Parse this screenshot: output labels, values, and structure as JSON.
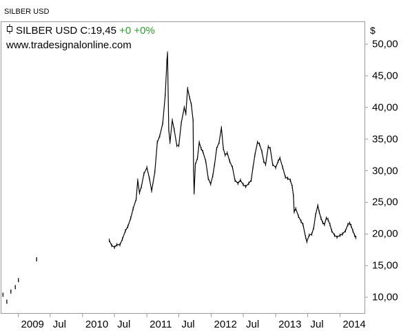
{
  "window": {
    "title": "SILBER USD"
  },
  "legend": {
    "symbol_icon": "candle-icon",
    "name": "SILBER USD",
    "close_label": "C:19,45",
    "change_abs": "+0",
    "change_pct": "+0%",
    "change_color": "#2a9d2a"
  },
  "watermark": "www.tradesignalonline.com",
  "currency": "$",
  "chart_data": {
    "type": "line",
    "title": "SILBER USD",
    "ylim": [
      7.5,
      53.5
    ],
    "y_ticks": [
      "10,00",
      "15,00",
      "20,00",
      "25,00",
      "30,00",
      "35,00",
      "40,00",
      "45,00",
      "50,00"
    ],
    "y_tick_values": [
      10,
      15,
      20,
      25,
      30,
      35,
      40,
      45,
      50
    ],
    "x_tick_labels": [
      "2009",
      "Jul",
      "2010",
      "Jul",
      "2011",
      "Jul",
      "2012",
      "Jul",
      "2013",
      "Jul",
      "2014"
    ],
    "x_tick_dates": [
      "2009-01-01",
      "2009-07-01",
      "2010-01-01",
      "2010-07-01",
      "2011-01-01",
      "2011-07-01",
      "2012-01-01",
      "2012-07-01",
      "2013-01-01",
      "2013-07-01",
      "2014-01-01"
    ],
    "xlim": [
      "2008-10-01",
      "2014-04-15"
    ],
    "grid": false,
    "line_color": "#000000",
    "series": [
      {
        "sparse_points": [
          [
            "2008-10-06",
            10.4
          ],
          [
            "2008-10-28",
            9.3
          ],
          [
            "2008-11-20",
            10.9
          ],
          [
            "2008-12-15",
            11.6
          ],
          [
            "2009-01-02",
            12.7
          ],
          [
            "2009-04-15",
            16.0
          ]
        ],
        "points": [
          [
            "2010-06-01",
            19.0
          ],
          [
            "2010-06-15",
            18.2
          ],
          [
            "2010-07-01",
            17.9
          ],
          [
            "2010-07-15",
            18.3
          ],
          [
            "2010-08-01",
            18.3
          ],
          [
            "2010-08-15",
            19.2
          ],
          [
            "2010-09-01",
            20.5
          ],
          [
            "2010-09-15",
            21.2
          ],
          [
            "2010-10-01",
            22.5
          ],
          [
            "2010-10-15",
            24.0
          ],
          [
            "2010-11-01",
            25.5
          ],
          [
            "2010-11-10",
            28.5
          ],
          [
            "2010-11-20",
            26.5
          ],
          [
            "2010-12-01",
            27.5
          ],
          [
            "2010-12-15",
            29.5
          ],
          [
            "2011-01-01",
            30.5
          ],
          [
            "2011-01-15",
            28.8
          ],
          [
            "2011-01-28",
            26.8
          ],
          [
            "2011-02-15",
            29.8
          ],
          [
            "2011-03-01",
            34.5
          ],
          [
            "2011-03-15",
            35.5
          ],
          [
            "2011-04-01",
            37.5
          ],
          [
            "2011-04-15",
            42.0
          ],
          [
            "2011-04-25",
            47.5
          ],
          [
            "2011-04-28",
            48.6
          ],
          [
            "2011-05-05",
            36.5
          ],
          [
            "2011-05-12",
            34.5
          ],
          [
            "2011-05-25",
            38.0
          ],
          [
            "2011-06-05",
            36.5
          ],
          [
            "2011-06-20",
            34.0
          ],
          [
            "2011-07-01",
            34.0
          ],
          [
            "2011-07-15",
            37.5
          ],
          [
            "2011-08-01",
            40.0
          ],
          [
            "2011-08-10",
            39.0
          ],
          [
            "2011-08-20",
            43.0
          ],
          [
            "2011-09-01",
            41.5
          ],
          [
            "2011-09-10",
            40.5
          ],
          [
            "2011-09-20",
            38.0
          ],
          [
            "2011-09-23",
            30.0
          ],
          [
            "2011-09-26",
            26.5
          ],
          [
            "2011-10-03",
            31.0
          ],
          [
            "2011-10-15",
            32.0
          ],
          [
            "2011-10-25",
            34.5
          ],
          [
            "2011-11-05",
            33.5
          ],
          [
            "2011-11-15",
            33.0
          ],
          [
            "2011-12-01",
            31.5
          ],
          [
            "2011-12-15",
            28.8
          ],
          [
            "2011-12-29",
            27.9
          ],
          [
            "2012-01-10",
            29.2
          ],
          [
            "2012-01-20",
            31.0
          ],
          [
            "2012-02-01",
            33.5
          ],
          [
            "2012-02-15",
            34.5
          ],
          [
            "2012-02-28",
            36.8
          ],
          [
            "2012-03-10",
            33.5
          ],
          [
            "2012-03-20",
            32.5
          ],
          [
            "2012-04-01",
            32.8
          ],
          [
            "2012-04-15",
            31.5
          ],
          [
            "2012-05-01",
            30.5
          ],
          [
            "2012-05-15",
            28.5
          ],
          [
            "2012-06-01",
            28.0
          ],
          [
            "2012-06-15",
            28.5
          ],
          [
            "2012-07-01",
            27.8
          ],
          [
            "2012-07-15",
            27.5
          ],
          [
            "2012-08-01",
            28.0
          ],
          [
            "2012-08-15",
            28.5
          ],
          [
            "2012-08-25",
            30.5
          ],
          [
            "2012-09-05",
            32.5
          ],
          [
            "2012-09-20",
            34.5
          ],
          [
            "2012-10-01",
            34.2
          ],
          [
            "2012-10-15",
            33.0
          ],
          [
            "2012-10-25",
            31.5
          ],
          [
            "2012-11-05",
            31.0
          ],
          [
            "2012-11-20",
            33.8
          ],
          [
            "2012-12-01",
            33.5
          ],
          [
            "2012-12-15",
            31.0
          ],
          [
            "2013-01-01",
            30.5
          ],
          [
            "2013-01-15",
            31.5
          ],
          [
            "2013-01-25",
            32.0
          ],
          [
            "2013-02-10",
            30.5
          ],
          [
            "2013-02-25",
            29.0
          ],
          [
            "2013-03-10",
            28.8
          ],
          [
            "2013-03-25",
            28.5
          ],
          [
            "2013-04-05",
            27.5
          ],
          [
            "2013-04-12",
            26.0
          ],
          [
            "2013-04-16",
            23.5
          ],
          [
            "2013-04-25",
            24.0
          ],
          [
            "2013-05-10",
            22.8
          ],
          [
            "2013-05-25",
            22.0
          ],
          [
            "2013-06-05",
            21.5
          ],
          [
            "2013-06-20",
            19.5
          ],
          [
            "2013-06-27",
            18.8
          ],
          [
            "2013-07-10",
            19.8
          ],
          [
            "2013-07-25",
            20.0
          ],
          [
            "2013-08-05",
            21.0
          ],
          [
            "2013-08-15",
            23.0
          ],
          [
            "2013-08-28",
            24.5
          ],
          [
            "2013-09-05",
            23.5
          ],
          [
            "2013-09-15",
            22.5
          ],
          [
            "2013-09-25",
            21.8
          ],
          [
            "2013-10-05",
            21.5
          ],
          [
            "2013-10-15",
            22.5
          ],
          [
            "2013-10-25",
            22.3
          ],
          [
            "2013-11-05",
            21.5
          ],
          [
            "2013-11-15",
            20.5
          ],
          [
            "2013-12-01",
            19.8
          ],
          [
            "2013-12-15",
            19.5
          ],
          [
            "2014-01-01",
            19.8
          ],
          [
            "2014-01-15",
            20.0
          ],
          [
            "2014-02-01",
            20.5
          ],
          [
            "2014-02-15",
            21.5
          ],
          [
            "2014-02-25",
            21.7
          ],
          [
            "2014-03-05",
            21.3
          ],
          [
            "2014-03-15",
            20.5
          ],
          [
            "2014-03-25",
            19.8
          ],
          [
            "2014-04-01",
            19.45
          ]
        ]
      }
    ]
  }
}
